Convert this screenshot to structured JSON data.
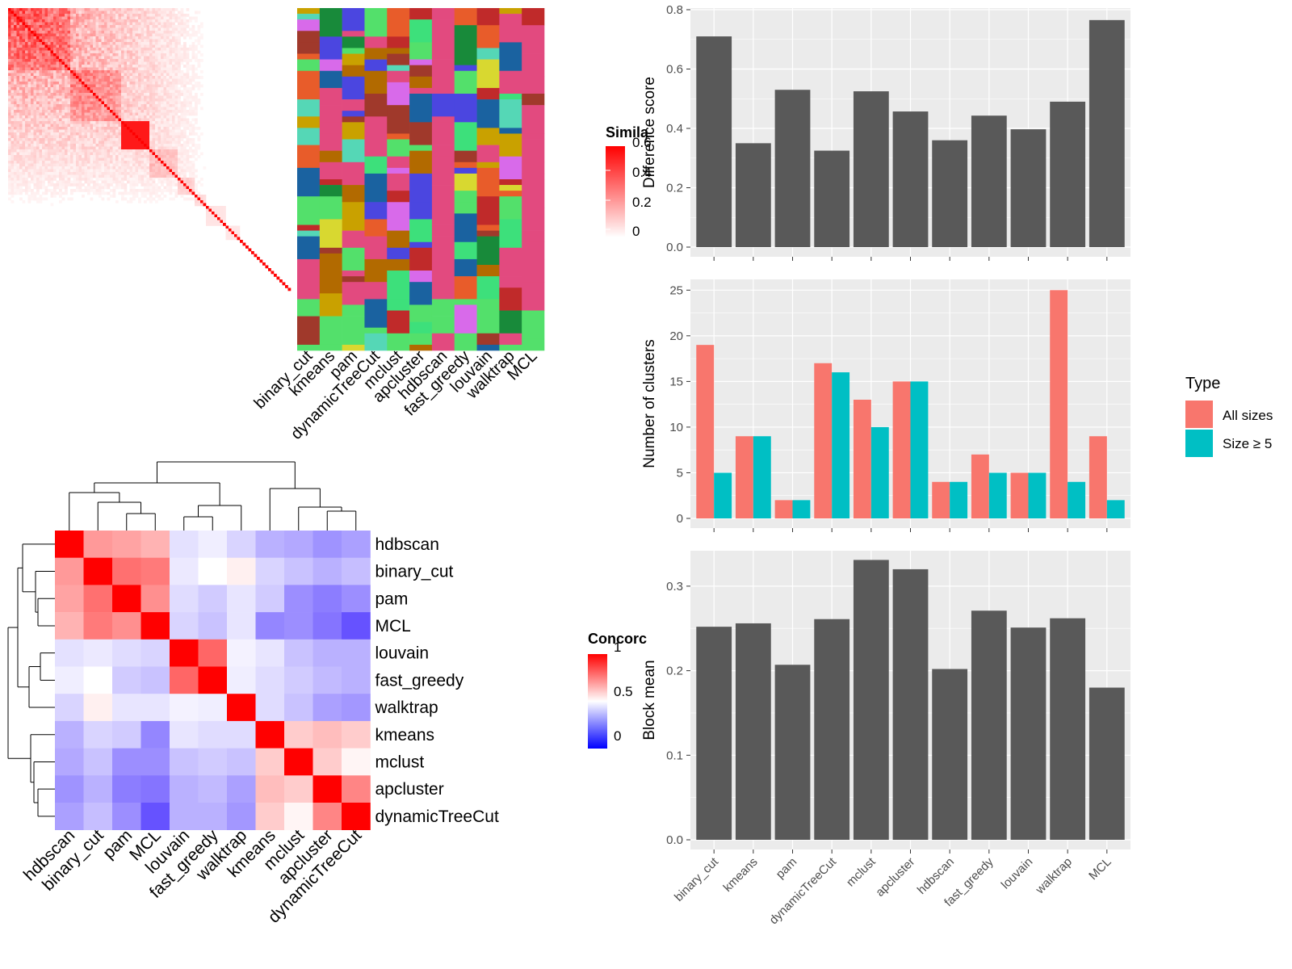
{
  "colors": {
    "panel_bg": "#EBEBEB",
    "bar_dark": "#595959",
    "all_sizes": "#F8766D",
    "size_ge5": "#00BFC4",
    "sim_high": "#FF0000",
    "conc_high": "#FF0000",
    "conc_mid": "#FFFFFF",
    "conc_low": "#0000FF"
  },
  "similarity_legend": {
    "title": "Simila",
    "ticks": [
      "0.6",
      "0.4",
      "0.2",
      "0"
    ]
  },
  "concordance_legend": {
    "title": "Concorc",
    "ticks": [
      "1",
      "0.5",
      "0"
    ]
  },
  "method_columns": [
    "binary_cut",
    "kmeans",
    "pam",
    "dynamicTreeCut",
    "mclust",
    "apcluster",
    "hdbscan",
    "fast_greedy",
    "louvain",
    "walktrap",
    "MCL"
  ],
  "concordance_methods": [
    "hdbscan",
    "binary_cut",
    "pam",
    "MCL",
    "louvain",
    "fast_greedy",
    "walktrap",
    "kmeans",
    "mclust",
    "apcluster",
    "dynamicTreeCut"
  ],
  "concordance_matrix": [
    [
      1.0,
      0.7,
      0.68,
      0.65,
      0.43,
      0.46,
      0.4,
      0.32,
      0.3,
      0.25,
      0.28
    ],
    [
      0.7,
      1.0,
      0.78,
      0.76,
      0.45,
      0.5,
      0.53,
      0.4,
      0.36,
      0.32,
      0.35
    ],
    [
      0.68,
      0.78,
      1.0,
      0.72,
      0.42,
      0.38,
      0.44,
      0.38,
      0.24,
      0.2,
      0.24
    ],
    [
      0.65,
      0.76,
      0.72,
      1.0,
      0.4,
      0.36,
      0.44,
      0.22,
      0.24,
      0.18,
      0.1
    ],
    [
      0.43,
      0.45,
      0.42,
      0.4,
      1.0,
      0.8,
      0.47,
      0.44,
      0.36,
      0.32,
      0.32
    ],
    [
      0.46,
      0.5,
      0.38,
      0.36,
      0.8,
      1.0,
      0.46,
      0.42,
      0.38,
      0.34,
      0.32
    ],
    [
      0.4,
      0.53,
      0.44,
      0.44,
      0.47,
      0.46,
      1.0,
      0.42,
      0.36,
      0.28,
      0.26
    ],
    [
      0.32,
      0.4,
      0.38,
      0.22,
      0.44,
      0.42,
      0.42,
      1.0,
      0.6,
      0.63,
      0.6
    ],
    [
      0.3,
      0.36,
      0.24,
      0.24,
      0.36,
      0.38,
      0.36,
      0.6,
      1.0,
      0.6,
      0.52
    ],
    [
      0.25,
      0.32,
      0.2,
      0.18,
      0.32,
      0.34,
      0.28,
      0.63,
      0.6,
      1.0,
      0.74
    ],
    [
      0.28,
      0.35,
      0.24,
      0.1,
      0.32,
      0.32,
      0.26,
      0.6,
      0.52,
      0.74,
      1.0
    ]
  ],
  "chart_data": [
    {
      "type": "bar",
      "categories": [
        "binary_cut",
        "kmeans",
        "pam",
        "dynamicTreeCut",
        "mclust",
        "apcluster",
        "hdbscan",
        "fast_greedy",
        "louvain",
        "walktrap",
        "MCL"
      ],
      "values": [
        0.71,
        0.35,
        0.53,
        0.325,
        0.525,
        0.457,
        0.36,
        0.443,
        0.397,
        0.49,
        0.765
      ],
      "ylabel": "Difference score",
      "ylim": [
        0,
        0.8
      ],
      "yticks": [
        "0.0",
        "0.2",
        "0.4",
        "0.6",
        "0.8"
      ]
    },
    {
      "type": "bar",
      "categories": [
        "binary_cut",
        "kmeans",
        "pam",
        "dynamicTreeCut",
        "mclust",
        "apcluster",
        "hdbscan",
        "fast_greedy",
        "louvain",
        "walktrap",
        "MCL"
      ],
      "series": [
        {
          "name": "All sizes",
          "values": [
            19,
            9,
            2,
            17,
            13,
            15,
            4,
            7,
            5,
            25,
            9
          ]
        },
        {
          "name": "Size ≥ 5",
          "values": [
            5,
            9,
            2,
            16,
            10,
            15,
            4,
            5,
            5,
            4,
            2
          ]
        }
      ],
      "ylabel": "Number of clusters",
      "ylim": [
        0,
        26
      ],
      "yticks": [
        "0",
        "5",
        "10",
        "15",
        "20",
        "25"
      ],
      "legend": {
        "title": "Type",
        "position": "right"
      }
    },
    {
      "type": "bar",
      "categories": [
        "binary_cut",
        "kmeans",
        "pam",
        "dynamicTreeCut",
        "mclust",
        "apcluster",
        "hdbscan",
        "fast_greedy",
        "louvain",
        "walktrap",
        "MCL"
      ],
      "values": [
        0.252,
        0.256,
        0.207,
        0.261,
        0.331,
        0.32,
        0.202,
        0.271,
        0.251,
        0.262,
        0.18
      ],
      "ylabel": "Block mean",
      "ylim": [
        0,
        0.34
      ],
      "yticks": [
        "0.0",
        "0.1",
        "0.2",
        "0.3"
      ]
    }
  ]
}
